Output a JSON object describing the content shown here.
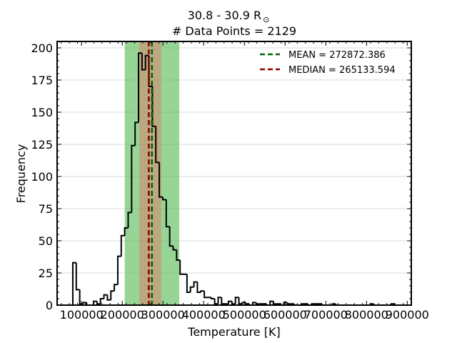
{
  "chart_data": {
    "type": "histogram",
    "title_line1": "30.8 - 30.9 R",
    "title_symbol": "⊙",
    "title_line2": "# Data Points = 2129",
    "xlabel": "Temperature [K]",
    "ylabel": "Frequency",
    "xlim": [
      40000,
      910000
    ],
    "ylim": [
      0,
      205
    ],
    "xticks": [
      100000,
      200000,
      300000,
      400000,
      500000,
      600000,
      700000,
      800000,
      900000
    ],
    "yticks": [
      0,
      25,
      50,
      75,
      100,
      125,
      150,
      175,
      200
    ],
    "grid": "horizontal",
    "bin_width": 8500,
    "bins_start": 78500,
    "counts": [
      33,
      12,
      1,
      2,
      0,
      0,
      3,
      1,
      5,
      8,
      4,
      11,
      16,
      38,
      54,
      60,
      72,
      124,
      142,
      196,
      183,
      194,
      170,
      139,
      111,
      84,
      82,
      61,
      46,
      43,
      35,
      24,
      24,
      10,
      14,
      18,
      10,
      11,
      6,
      6,
      5,
      1,
      6,
      1,
      1,
      3,
      1,
      6,
      1,
      2,
      1,
      0,
      2,
      1,
      1,
      1,
      0,
      3,
      1,
      1,
      0,
      2,
      1,
      1,
      0,
      0,
      1,
      1,
      0,
      1,
      1,
      1,
      0,
      0,
      0,
      1,
      0,
      0,
      0,
      0,
      0,
      0,
      0,
      0,
      0,
      0,
      1,
      0,
      0,
      0,
      0,
      0,
      1
    ],
    "bands": [
      {
        "x0": 206000,
        "x1": 340000,
        "color": "#5fbf5f",
        "alpha": 0.65
      },
      {
        "x0": 242000,
        "x1": 296000,
        "color": "#e07b6a",
        "alpha": 0.5
      }
    ],
    "lines": [
      {
        "name": "MEAN = 272872.386",
        "x": 272872.386,
        "color": "#006400"
      },
      {
        "name": "MEDIAN = 265133.594",
        "x": 265133.594,
        "color": "#8b0000"
      }
    ],
    "legend_position": "top-right"
  }
}
